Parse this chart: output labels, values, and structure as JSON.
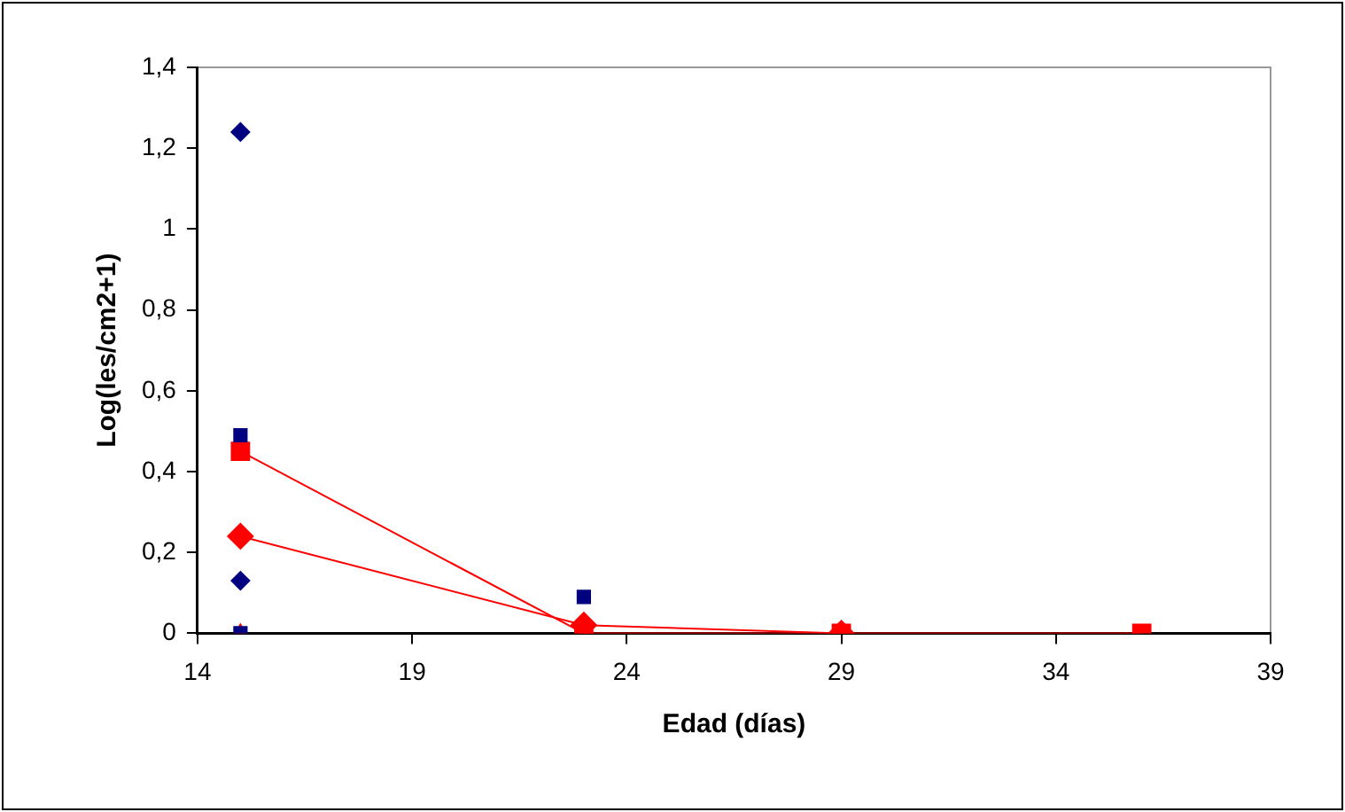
{
  "chart_data": {
    "type": "scatter",
    "xlabel": "Edad (días)",
    "ylabel": "Log(les/cm2+1)",
    "xlim": [
      14,
      39
    ],
    "xticks": [
      14,
      19,
      24,
      29,
      34,
      39
    ],
    "ylim": [
      0,
      1.4
    ],
    "yticks": [
      {
        "value": 0,
        "label": "0"
      },
      {
        "value": 0.2,
        "label": "0,2"
      },
      {
        "value": 0.4,
        "label": "0,4"
      },
      {
        "value": 0.6,
        "label": "0,6"
      },
      {
        "value": 0.8,
        "label": "0,8"
      },
      {
        "value": 1,
        "label": "1"
      },
      {
        "value": 1.2,
        "label": "1,2"
      },
      {
        "value": 1.4,
        "label": "1,4"
      }
    ],
    "grid": false,
    "legend": false,
    "series": [
      {
        "marker": "diamond",
        "color": "#000080",
        "x": [
          15,
          15
        ],
        "values": [
          1.24,
          0.13
        ]
      },
      {
        "marker": "square",
        "color": "#000080",
        "x": [
          15,
          15,
          23
        ],
        "values": [
          0.49,
          0,
          0.09
        ]
      },
      {
        "type": "line",
        "marker": "square",
        "color": "#ff0000",
        "x": [
          15,
          23,
          29,
          36
        ],
        "values": [
          0.45,
          0,
          0,
          0
        ]
      },
      {
        "type": "line",
        "marker": "diamond",
        "color": "#ff0000",
        "x": [
          15,
          23,
          29
        ],
        "values": [
          0.24,
          0.02,
          0
        ]
      },
      {
        "type": "scatter",
        "marker": "triangle",
        "color": "#ff0000",
        "x": [
          15,
          23
        ],
        "values": [
          0,
          0
        ]
      }
    ]
  }
}
